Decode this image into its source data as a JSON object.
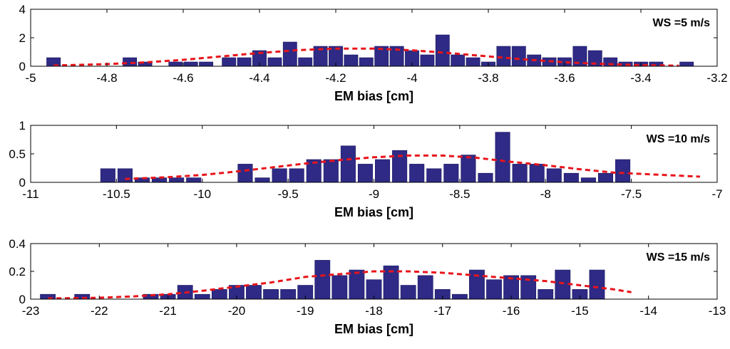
{
  "chart_data": [
    {
      "type": "bar",
      "annotation": "WS =5 m/s",
      "xlabel": "EM bias [cm]",
      "ylabel": "",
      "xlim": [
        -5,
        -3.2
      ],
      "ylim": [
        0,
        4
      ],
      "xticks": [
        "-5",
        "-4.8",
        "-4.6",
        "-4.4",
        "-4.2",
        "-4",
        "-3.8",
        "-3.6",
        "-3.4",
        "-3.2"
      ],
      "yticks": [
        "0",
        "2",
        "4"
      ],
      "bar_color": "#2e2a85",
      "fit_color": "#e8141b",
      "grid": false,
      "bar_width": 0.036,
      "bars": [
        {
          "x": -4.94,
          "y": 0.6
        },
        {
          "x": -4.74,
          "y": 0.6
        },
        {
          "x": -4.7,
          "y": 0.3
        },
        {
          "x": -4.62,
          "y": 0.3
        },
        {
          "x": -4.58,
          "y": 0.3
        },
        {
          "x": -4.54,
          "y": 0.3
        },
        {
          "x": -4.48,
          "y": 0.6
        },
        {
          "x": -4.44,
          "y": 0.6
        },
        {
          "x": -4.4,
          "y": 1.1
        },
        {
          "x": -4.36,
          "y": 0.6
        },
        {
          "x": -4.32,
          "y": 1.7
        },
        {
          "x": -4.28,
          "y": 0.6
        },
        {
          "x": -4.24,
          "y": 1.4
        },
        {
          "x": -4.2,
          "y": 1.4
        },
        {
          "x": -4.16,
          "y": 0.8
        },
        {
          "x": -4.12,
          "y": 0.6
        },
        {
          "x": -4.08,
          "y": 1.4
        },
        {
          "x": -4.04,
          "y": 1.4
        },
        {
          "x": -4.0,
          "y": 1.1
        },
        {
          "x": -3.96,
          "y": 0.8
        },
        {
          "x": -3.92,
          "y": 2.2
        },
        {
          "x": -3.88,
          "y": 0.8
        },
        {
          "x": -3.84,
          "y": 0.6
        },
        {
          "x": -3.8,
          "y": 0.3
        },
        {
          "x": -3.76,
          "y": 1.4
        },
        {
          "x": -3.72,
          "y": 1.4
        },
        {
          "x": -3.68,
          "y": 0.8
        },
        {
          "x": -3.64,
          "y": 0.6
        },
        {
          "x": -3.6,
          "y": 0.6
        },
        {
          "x": -3.56,
          "y": 1.4
        },
        {
          "x": -3.52,
          "y": 1.1
        },
        {
          "x": -3.48,
          "y": 0.6
        },
        {
          "x": -3.44,
          "y": 0.3
        },
        {
          "x": -3.4,
          "y": 0.3
        },
        {
          "x": -3.36,
          "y": 0.3
        },
        {
          "x": -3.28,
          "y": 0.3
        }
      ],
      "fit": {
        "x": [
          -4.94,
          -4.8,
          -4.7,
          -4.6,
          -4.5,
          -4.4,
          -4.3,
          -4.2,
          -4.1,
          -4.0,
          -3.9,
          -3.8,
          -3.7,
          -3.6,
          -3.5,
          -3.4,
          -3.3
        ],
        "y": [
          0.05,
          0.15,
          0.27,
          0.45,
          0.69,
          0.93,
          1.13,
          1.24,
          1.24,
          1.12,
          0.92,
          0.69,
          0.47,
          0.28,
          0.16,
          0.08,
          0.04
        ]
      }
    },
    {
      "type": "bar",
      "annotation": "WS =10 m/s",
      "xlabel": "EM bias [cm]",
      "ylabel": "",
      "xlim": [
        -11,
        -7
      ],
      "ylim": [
        0,
        1
      ],
      "xticks": [
        "-11",
        "-10.5",
        "-10",
        "-9.5",
        "-9",
        "-8.5",
        "-8",
        "-7.5",
        "-7"
      ],
      "yticks": [
        "0",
        "0.5",
        "1"
      ],
      "bar_color": "#2e2a85",
      "fit_color": "#e8141b",
      "grid": false,
      "bar_width": 0.085,
      "bars": [
        {
          "x": -10.55,
          "y": 0.24
        },
        {
          "x": -10.45,
          "y": 0.24
        },
        {
          "x": -10.35,
          "y": 0.08
        },
        {
          "x": -10.25,
          "y": 0.08
        },
        {
          "x": -10.15,
          "y": 0.08
        },
        {
          "x": -10.05,
          "y": 0.08
        },
        {
          "x": -9.75,
          "y": 0.32
        },
        {
          "x": -9.65,
          "y": 0.08
        },
        {
          "x": -9.55,
          "y": 0.24
        },
        {
          "x": -9.45,
          "y": 0.24
        },
        {
          "x": -9.35,
          "y": 0.4
        },
        {
          "x": -9.25,
          "y": 0.4
        },
        {
          "x": -9.15,
          "y": 0.64
        },
        {
          "x": -9.05,
          "y": 0.32
        },
        {
          "x": -8.95,
          "y": 0.4
        },
        {
          "x": -8.85,
          "y": 0.56
        },
        {
          "x": -8.75,
          "y": 0.32
        },
        {
          "x": -8.65,
          "y": 0.24
        },
        {
          "x": -8.55,
          "y": 0.32
        },
        {
          "x": -8.45,
          "y": 0.48
        },
        {
          "x": -8.35,
          "y": 0.16
        },
        {
          "x": -8.25,
          "y": 0.88
        },
        {
          "x": -8.15,
          "y": 0.32
        },
        {
          "x": -8.05,
          "y": 0.32
        },
        {
          "x": -7.95,
          "y": 0.24
        },
        {
          "x": -7.85,
          "y": 0.16
        },
        {
          "x": -7.75,
          "y": 0.08
        },
        {
          "x": -7.65,
          "y": 0.16
        },
        {
          "x": -7.55,
          "y": 0.4
        }
      ],
      "fit": {
        "x": [
          -10.45,
          -10.2,
          -10.0,
          -9.8,
          -9.6,
          -9.4,
          -9.2,
          -9.0,
          -8.8,
          -8.6,
          -8.4,
          -8.2,
          -8.0,
          -7.8,
          -7.6,
          -7.1
        ],
        "y": [
          0.06,
          0.09,
          0.13,
          0.19,
          0.26,
          0.33,
          0.39,
          0.44,
          0.47,
          0.47,
          0.43,
          0.36,
          0.3,
          0.23,
          0.17,
          0.1
        ]
      }
    },
    {
      "type": "bar",
      "annotation": "WS =15 m/s",
      "xlabel": "EM bias [cm]",
      "ylabel": "",
      "xlim": [
        -23,
        -13
      ],
      "ylim": [
        0,
        0.4
      ],
      "xticks": [
        "-23",
        "-22",
        "-21",
        "-20",
        "-19",
        "-18",
        "-17",
        "-16",
        "-15",
        "-14",
        "-13"
      ],
      "yticks": [
        "0",
        "0.2",
        "0.4"
      ],
      "bar_color": "#2e2a85",
      "fit_color": "#e8141b",
      "grid": false,
      "bar_width": 0.22,
      "bars": [
        {
          "x": -22.75,
          "y": 0.035
        },
        {
          "x": -22.25,
          "y": 0.035
        },
        {
          "x": -21.25,
          "y": 0.035
        },
        {
          "x": -21.0,
          "y": 0.035
        },
        {
          "x": -20.75,
          "y": 0.1
        },
        {
          "x": -20.5,
          "y": 0.035
        },
        {
          "x": -20.25,
          "y": 0.07
        },
        {
          "x": -20.0,
          "y": 0.1
        },
        {
          "x": -19.75,
          "y": 0.1
        },
        {
          "x": -19.5,
          "y": 0.07
        },
        {
          "x": -19.25,
          "y": 0.07
        },
        {
          "x": -19.0,
          "y": 0.1
        },
        {
          "x": -18.75,
          "y": 0.28
        },
        {
          "x": -18.5,
          "y": 0.17
        },
        {
          "x": -18.25,
          "y": 0.21
        },
        {
          "x": -18.0,
          "y": 0.14
        },
        {
          "x": -17.75,
          "y": 0.24
        },
        {
          "x": -17.5,
          "y": 0.1
        },
        {
          "x": -17.25,
          "y": 0.17
        },
        {
          "x": -17.0,
          "y": 0.07
        },
        {
          "x": -16.75,
          "y": 0.035
        },
        {
          "x": -16.5,
          "y": 0.21
        },
        {
          "x": -16.25,
          "y": 0.14
        },
        {
          "x": -16.0,
          "y": 0.17
        },
        {
          "x": -15.75,
          "y": 0.17
        },
        {
          "x": -15.5,
          "y": 0.07
        },
        {
          "x": -15.25,
          "y": 0.21
        },
        {
          "x": -15.0,
          "y": 0.07
        },
        {
          "x": -14.75,
          "y": 0.21
        }
      ],
      "fit": {
        "x": [
          -22.75,
          -22.0,
          -21.5,
          -21.0,
          -20.5,
          -20.0,
          -19.5,
          -19.0,
          -18.5,
          -18.0,
          -17.5,
          -17.0,
          -16.5,
          -16.0,
          -15.5,
          -15.0,
          -14.5,
          -14.25
        ],
        "y": [
          0.005,
          0.01,
          0.02,
          0.035,
          0.06,
          0.09,
          0.12,
          0.16,
          0.18,
          0.2,
          0.2,
          0.19,
          0.17,
          0.15,
          0.13,
          0.1,
          0.07,
          0.05
        ]
      }
    }
  ]
}
